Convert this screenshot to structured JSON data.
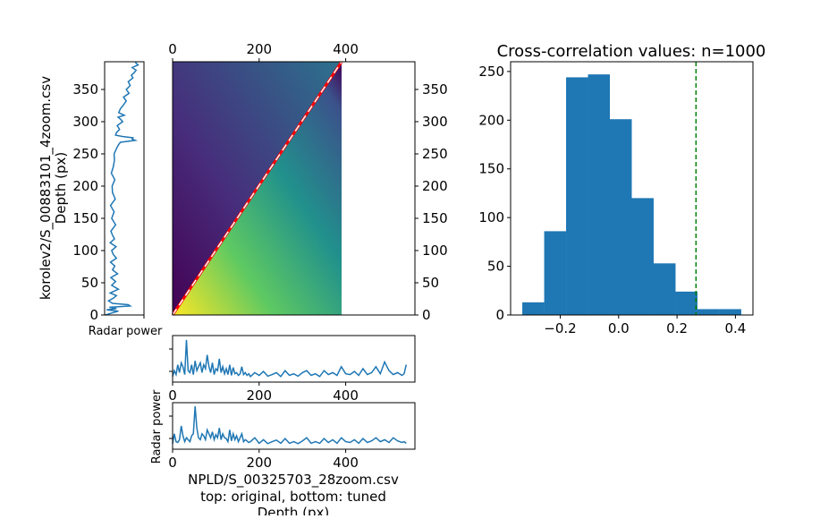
{
  "chart_data": [
    {
      "id": "depth_profile",
      "type": "line",
      "xlabel": "Radar power",
      "ylabel_top": "korolev2/S_00883101_4zoom.csv",
      "ylabel_bottom": "Depth (px)",
      "ylim": [
        0,
        393
      ],
      "yticks": [
        0,
        50,
        100,
        150,
        200,
        250,
        300,
        350
      ],
      "color": "#1f77b4",
      "depth": [
        0,
        3,
        6,
        8,
        10,
        12,
        14,
        16,
        18,
        22,
        26,
        30,
        34,
        40,
        46,
        52,
        58,
        64,
        70,
        76,
        82,
        88,
        94,
        100,
        106,
        112,
        118,
        124,
        130,
        140,
        150,
        160,
        170,
        180,
        190,
        200,
        210,
        220,
        230,
        240,
        250,
        258,
        264,
        268,
        271,
        273,
        275,
        277,
        279,
        283,
        288,
        294,
        300,
        304,
        307,
        310,
        314,
        320,
        326,
        332,
        338,
        344,
        350,
        356,
        362,
        368,
        372,
        376,
        380,
        384,
        388,
        392
      ],
      "power": [
        0.02,
        0.18,
        0.35,
        0.05,
        0.3,
        0.12,
        0.65,
        0.6,
        0.2,
        0.1,
        0.22,
        0.3,
        0.14,
        0.35,
        0.18,
        0.28,
        0.16,
        0.33,
        0.2,
        0.26,
        0.15,
        0.3,
        0.22,
        0.18,
        0.29,
        0.14,
        0.25,
        0.2,
        0.16,
        0.28,
        0.18,
        0.24,
        0.15,
        0.27,
        0.2,
        0.19,
        0.26,
        0.17,
        0.22,
        0.25,
        0.24,
        0.3,
        0.35,
        0.4,
        0.78,
        0.7,
        0.72,
        0.45,
        0.28,
        0.3,
        0.38,
        0.32,
        0.46,
        0.4,
        0.34,
        0.5,
        0.36,
        0.4,
        0.48,
        0.55,
        0.48,
        0.62,
        0.55,
        0.65,
        0.6,
        0.72,
        0.68,
        0.75,
        0.8,
        0.7,
        0.85,
        0.78
      ]
    },
    {
      "id": "correlation_matrix",
      "type": "heatmap",
      "colormap": "viridis",
      "xlim": [
        0,
        560
      ],
      "ylim": [
        0,
        393
      ],
      "data_extent_x": [
        0,
        393
      ],
      "xticks": [
        0,
        200,
        400
      ],
      "yticks": [
        0,
        50,
        100,
        150,
        200,
        250,
        300,
        350
      ],
      "diagonal_path": {
        "x": [
          0,
          393
        ],
        "y": [
          0,
          393
        ],
        "color": "#ff0000"
      },
      "diagonal_tuned": {
        "x": [
          0,
          393
        ],
        "y": [
          0,
          393
        ],
        "color": "#ffffff",
        "style": "dashed"
      }
    },
    {
      "id": "radar_original",
      "type": "line",
      "xlim": [
        0,
        560
      ],
      "xticks": [
        0,
        200,
        400
      ],
      "color": "#1f77b4",
      "x": [
        0,
        4,
        8,
        12,
        16,
        20,
        24,
        28,
        32,
        36,
        40,
        44,
        48,
        52,
        56,
        60,
        64,
        68,
        72,
        76,
        80,
        84,
        88,
        92,
        96,
        100,
        104,
        108,
        112,
        116,
        120,
        124,
        128,
        132,
        136,
        140,
        144,
        148,
        152,
        156,
        160,
        164,
        168,
        172,
        176,
        180,
        190,
        200,
        210,
        220,
        230,
        240,
        250,
        260,
        270,
        280,
        290,
        300,
        310,
        320,
        330,
        340,
        350,
        360,
        370,
        380,
        390,
        400,
        410,
        420,
        430,
        440,
        450,
        460,
        470,
        480,
        490,
        500,
        510,
        520,
        530,
        535,
        540
      ],
      "y": [
        0.05,
        0.2,
        0.1,
        0.35,
        0.15,
        0.4,
        0.3,
        0.1,
        0.98,
        0.2,
        0.15,
        0.35,
        0.1,
        0.45,
        0.2,
        0.3,
        0.4,
        0.15,
        0.35,
        0.25,
        0.6,
        0.3,
        0.15,
        0.4,
        0.1,
        0.25,
        0.2,
        0.5,
        0.15,
        0.3,
        0.12,
        0.25,
        0.1,
        0.35,
        0.08,
        0.28,
        0.12,
        0.15,
        0.08,
        0.12,
        0.3,
        0.1,
        0.15,
        0.08,
        0.12,
        0.05,
        0.15,
        0.08,
        0.18,
        0.06,
        0.1,
        0.15,
        0.05,
        0.2,
        0.08,
        0.12,
        0.06,
        0.15,
        0.2,
        0.08,
        0.12,
        0.05,
        0.2,
        0.1,
        0.15,
        0.08,
        0.3,
        0.12,
        0.1,
        0.18,
        0.08,
        0.25,
        0.1,
        0.15,
        0.3,
        0.12,
        0.42,
        0.2,
        0.1,
        0.15,
        0.08,
        0.12,
        0.35
      ]
    },
    {
      "id": "radar_tuned",
      "type": "line",
      "xlim": [
        0,
        560
      ],
      "xticks": [
        0,
        200,
        400
      ],
      "ylabel": "Radar power",
      "xlabel_lines": [
        "NPLD/S_00325703_28zoom.csv",
        "top: original, bottom: tuned",
        "Depth (px)"
      ],
      "color": "#1f77b4",
      "x": [
        0,
        4,
        8,
        12,
        16,
        20,
        24,
        28,
        32,
        36,
        40,
        44,
        48,
        52,
        56,
        60,
        64,
        68,
        72,
        76,
        80,
        84,
        88,
        92,
        96,
        100,
        104,
        108,
        112,
        116,
        120,
        124,
        128,
        132,
        136,
        140,
        144,
        148,
        152,
        156,
        160,
        164,
        168,
        172,
        176,
        180,
        190,
        200,
        210,
        220,
        230,
        240,
        250,
        260,
        270,
        280,
        290,
        300,
        310,
        320,
        330,
        340,
        350,
        360,
        370,
        380,
        390,
        400,
        410,
        420,
        430,
        440,
        450,
        460,
        470,
        480,
        490,
        500,
        510,
        520,
        530,
        535,
        540
      ],
      "y": [
        0.05,
        0.3,
        0.1,
        0.08,
        0.15,
        0.5,
        0.25,
        0.1,
        0.2,
        0.15,
        0.1,
        0.25,
        0.3,
        1.0,
        0.45,
        0.2,
        0.15,
        0.3,
        0.25,
        0.15,
        0.4,
        0.3,
        0.2,
        0.35,
        0.15,
        0.28,
        0.2,
        0.45,
        0.15,
        0.3,
        0.2,
        0.18,
        0.1,
        0.4,
        0.12,
        0.3,
        0.15,
        0.25,
        0.1,
        0.2,
        0.3,
        0.1,
        0.15,
        0.12,
        0.08,
        0.1,
        0.2,
        0.06,
        0.15,
        0.05,
        0.1,
        0.14,
        0.06,
        0.18,
        0.06,
        0.1,
        0.05,
        0.12,
        0.2,
        0.06,
        0.1,
        0.06,
        0.18,
        0.08,
        0.15,
        0.06,
        0.2,
        0.1,
        0.08,
        0.15,
        0.06,
        0.18,
        0.08,
        0.12,
        0.2,
        0.1,
        0.15,
        0.08,
        0.2,
        0.12,
        0.08,
        0.1,
        0.06
      ]
    },
    {
      "id": "histogram",
      "type": "bar",
      "title": "Cross-correlation values: n=1000",
      "color": "#1f77b4",
      "bin_edges": [
        -0.33,
        -0.255,
        -0.18,
        -0.105,
        -0.03,
        0.045,
        0.12,
        0.195,
        0.27,
        0.345,
        0.42
      ],
      "counts": [
        13,
        86,
        244,
        247,
        201,
        120,
        53,
        24,
        6,
        6
      ],
      "xlim": [
        -0.37,
        0.46
      ],
      "ylim": [
        0,
        260
      ],
      "xticks": [
        -0.2,
        0.0,
        0.2,
        0.4
      ],
      "xtick_labels": [
        "−0.2",
        "0.0",
        "0.2",
        "0.4"
      ],
      "yticks": [
        0,
        50,
        100,
        150,
        200,
        250
      ],
      "vline": {
        "x": 0.265,
        "color": "#008000",
        "style": "dashed"
      }
    }
  ]
}
